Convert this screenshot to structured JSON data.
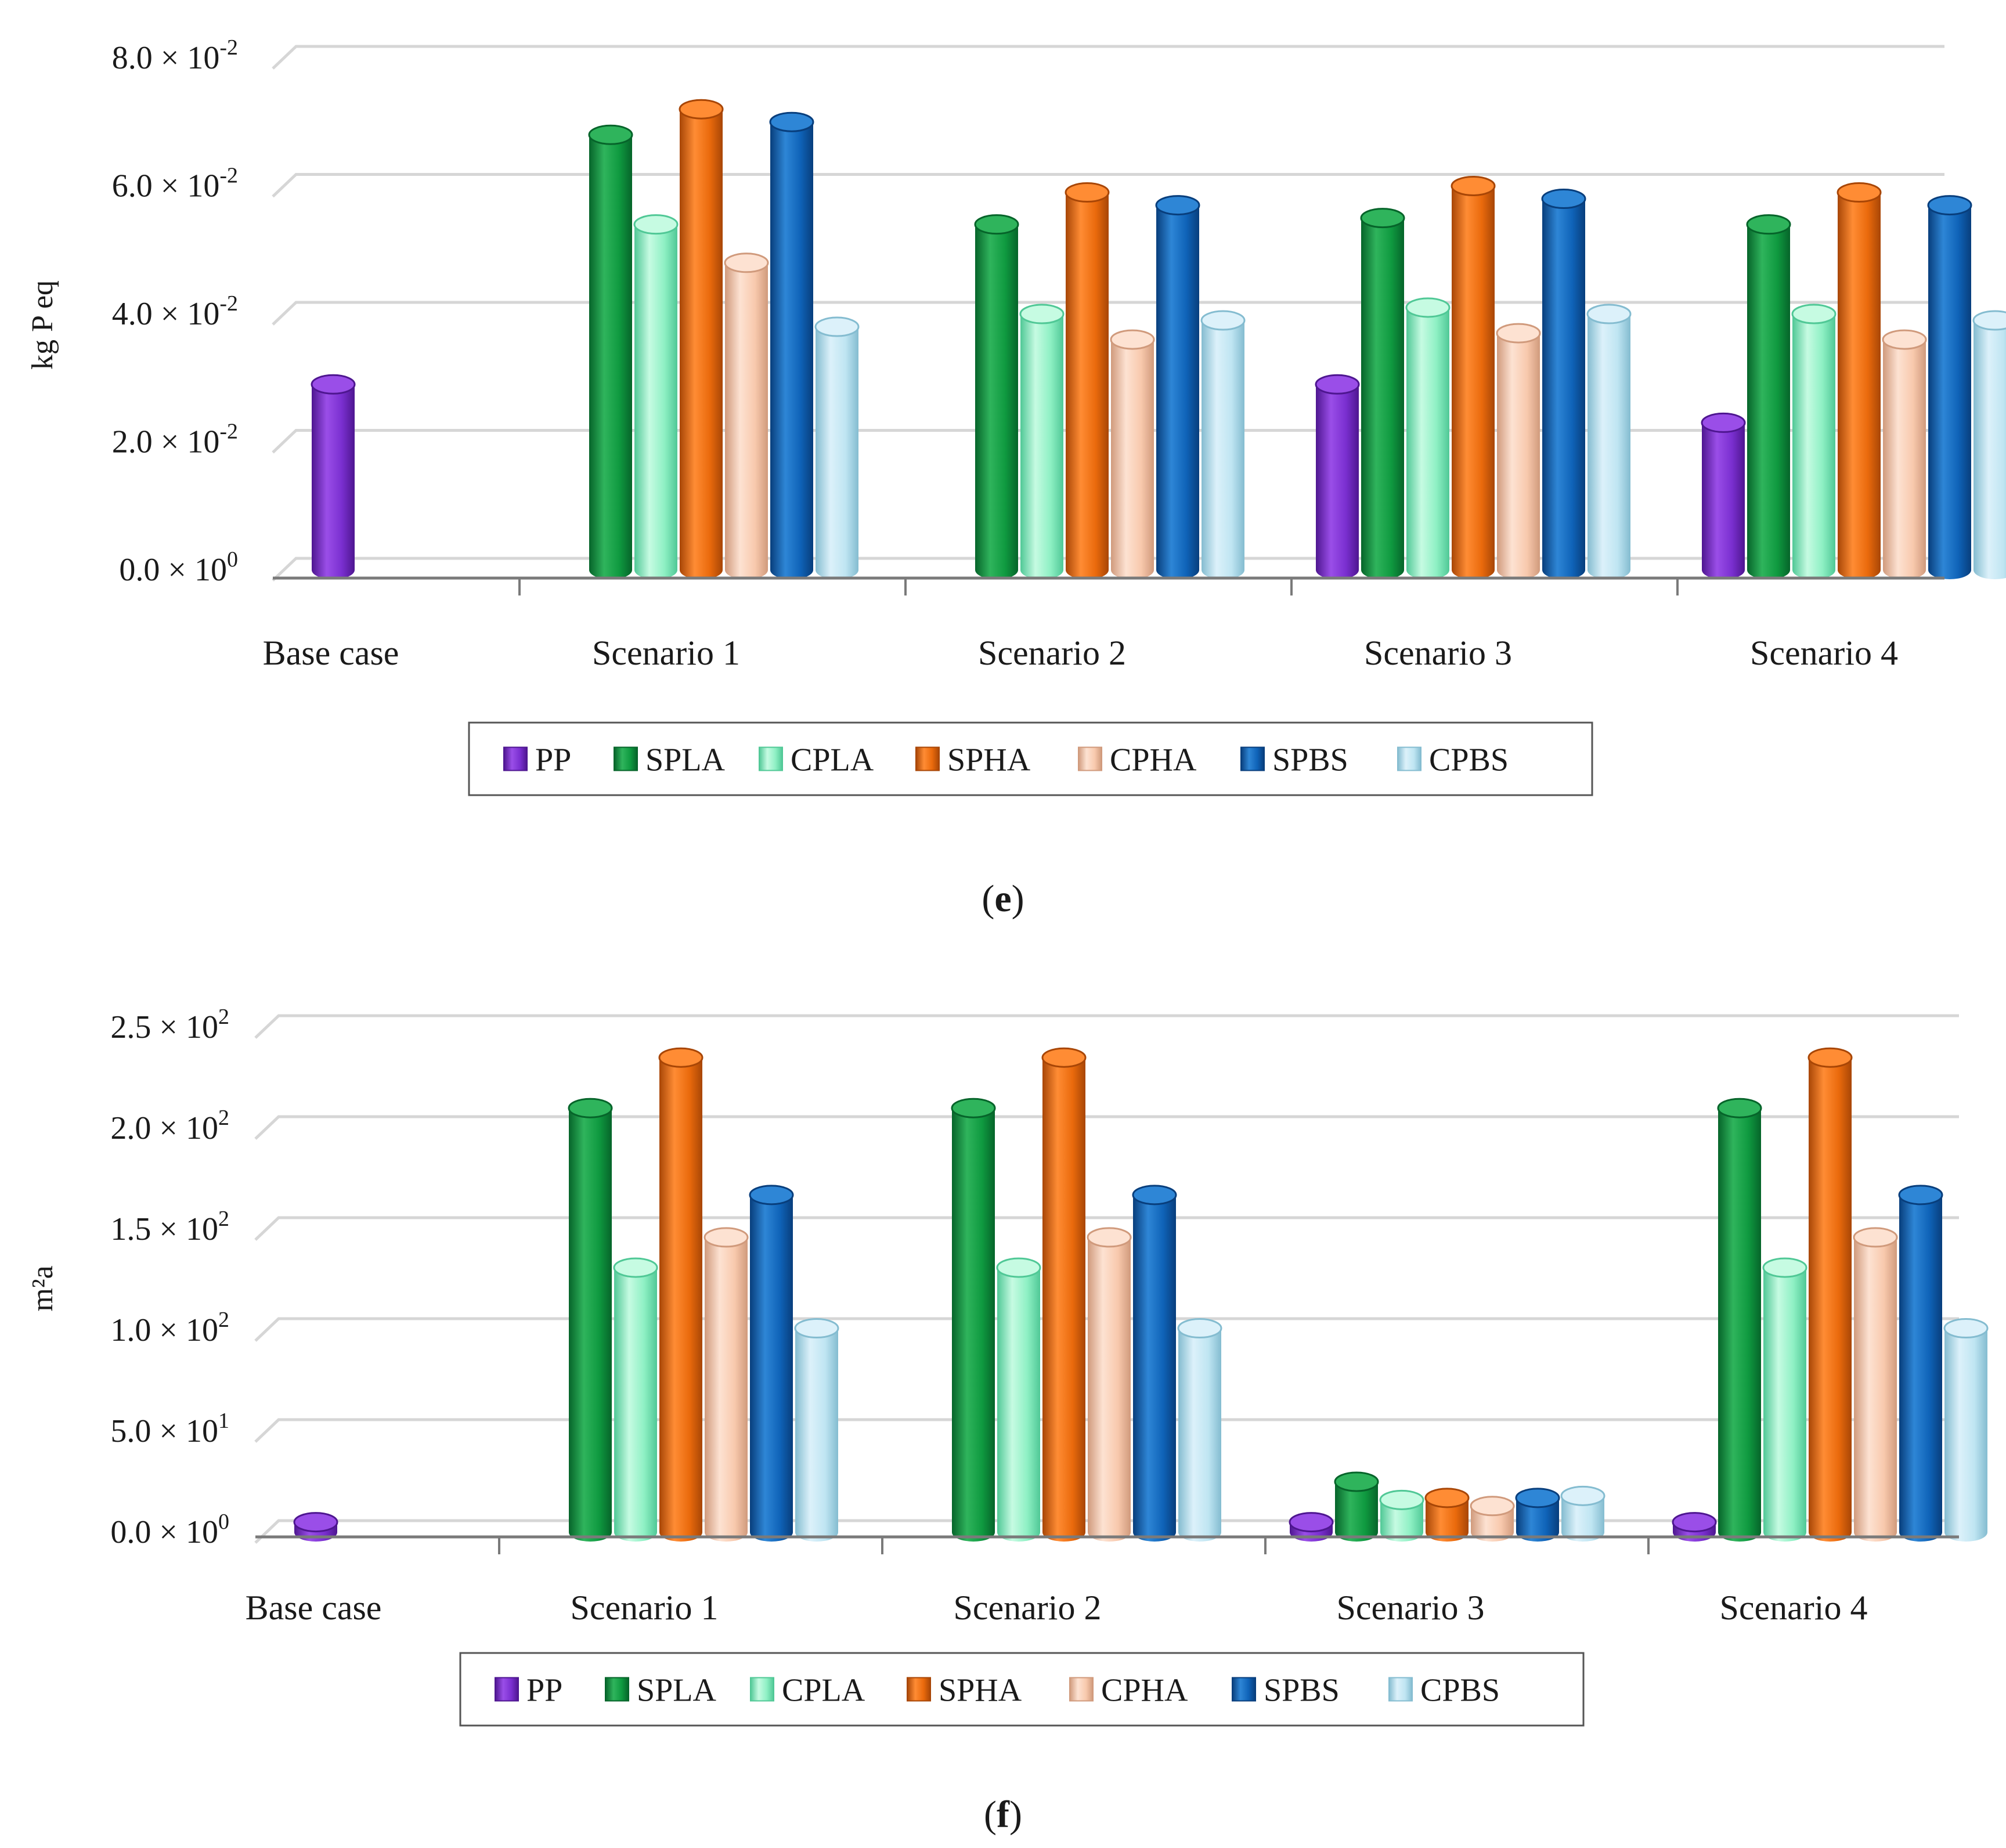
{
  "series_names": [
    "PP",
    "SPLA",
    "CPLA",
    "SPHA",
    "CPHA",
    "SPBS",
    "CPBS"
  ],
  "series_colors": {
    "PP": {
      "light": "#9a4ee8",
      "base": "#7a2fd0",
      "dark": "#4e1690"
    },
    "SPLA": {
      "light": "#2fb45c",
      "base": "#0f9a40",
      "dark": "#06642a"
    },
    "CPLA": {
      "light": "#c6fbe2",
      "base": "#8ef0c4",
      "dark": "#50c896"
    },
    "SPHA": {
      "light": "#ff8c34",
      "base": "#ea6a0c",
      "dark": "#a84606"
    },
    "CPHA": {
      "light": "#fde2d2",
      "base": "#f8c9ad",
      "dark": "#d09a7c"
    },
    "SPBS": {
      "light": "#2e86d6",
      "base": "#0f63b8",
      "dark": "#083e7c"
    },
    "CPBS": {
      "light": "#dcf1fa",
      "base": "#bfe5f2",
      "dark": "#84bcd0"
    }
  },
  "chart_data": [
    {
      "type": "bar",
      "panel_label": "e",
      "title": "",
      "xlabel": "",
      "ylabel": "kg P eq",
      "ylim": [
        0,
        0.08
      ],
      "grid": true,
      "legend": "bottom-center",
      "categories": [
        "Base case",
        "Scenario 1",
        "Scenario 2",
        "Scenario 3",
        "Scenario 4"
      ],
      "yticks": [
        {
          "value": 0.0,
          "mant": "0.0",
          "exp": "0"
        },
        {
          "value": 0.02,
          "mant": "2.0",
          "exp": "-2"
        },
        {
          "value": 0.04,
          "mant": "4.0",
          "exp": "-2"
        },
        {
          "value": 0.06,
          "mant": "6.0",
          "exp": "-2"
        },
        {
          "value": 0.08,
          "mant": "8.0",
          "exp": "-2"
        }
      ],
      "series": [
        {
          "name": "PP",
          "values": [
            0.029,
            null,
            null,
            0.029,
            0.023
          ]
        },
        {
          "name": "SPLA",
          "values": [
            null,
            0.068,
            0.054,
            0.055,
            0.054
          ]
        },
        {
          "name": "CPLA",
          "values": [
            null,
            0.054,
            0.04,
            0.041,
            0.04
          ]
        },
        {
          "name": "SPHA",
          "values": [
            null,
            0.072,
            0.059,
            0.06,
            0.059
          ]
        },
        {
          "name": "CPHA",
          "values": [
            null,
            0.048,
            0.036,
            0.037,
            0.036
          ]
        },
        {
          "name": "SPBS",
          "values": [
            null,
            0.07,
            0.057,
            0.058,
            0.057
          ]
        },
        {
          "name": "CPBS",
          "values": [
            null,
            0.038,
            0.039,
            0.04,
            0.039
          ]
        }
      ]
    },
    {
      "type": "bar",
      "panel_label": "f",
      "title": "",
      "xlabel": "",
      "ylabel": "m²a",
      "ylim": [
        0,
        250
      ],
      "grid": true,
      "legend": "bottom-center",
      "categories": [
        "Base case",
        "Scenario 1",
        "Scenario 2",
        "Scenario 3",
        "Scenario 4"
      ],
      "yticks": [
        {
          "value": 0,
          "mant": "0.0",
          "exp": "0"
        },
        {
          "value": 50,
          "mant": "5.0",
          "exp": "1"
        },
        {
          "value": 100,
          "mant": "1.0",
          "exp": "2"
        },
        {
          "value": 150,
          "mant": "1.5",
          "exp": "2"
        },
        {
          "value": 200,
          "mant": "2.0",
          "exp": "2"
        },
        {
          "value": 250,
          "mant": "2.5",
          "exp": "2"
        }
      ],
      "series": [
        {
          "name": "PP",
          "values": [
            5,
            null,
            null,
            5,
            5
          ]
        },
        {
          "name": "SPLA",
          "values": [
            null,
            210,
            210,
            25,
            210
          ]
        },
        {
          "name": "CPLA",
          "values": [
            null,
            131,
            131,
            16,
            131
          ]
        },
        {
          "name": "SPHA",
          "values": [
            null,
            235,
            235,
            17,
            235
          ]
        },
        {
          "name": "CPHA",
          "values": [
            null,
            146,
            146,
            13,
            146
          ]
        },
        {
          "name": "SPBS",
          "values": [
            null,
            167,
            167,
            17,
            167
          ]
        },
        {
          "name": "CPBS",
          "values": [
            null,
            101,
            101,
            18,
            101
          ]
        }
      ]
    }
  ]
}
